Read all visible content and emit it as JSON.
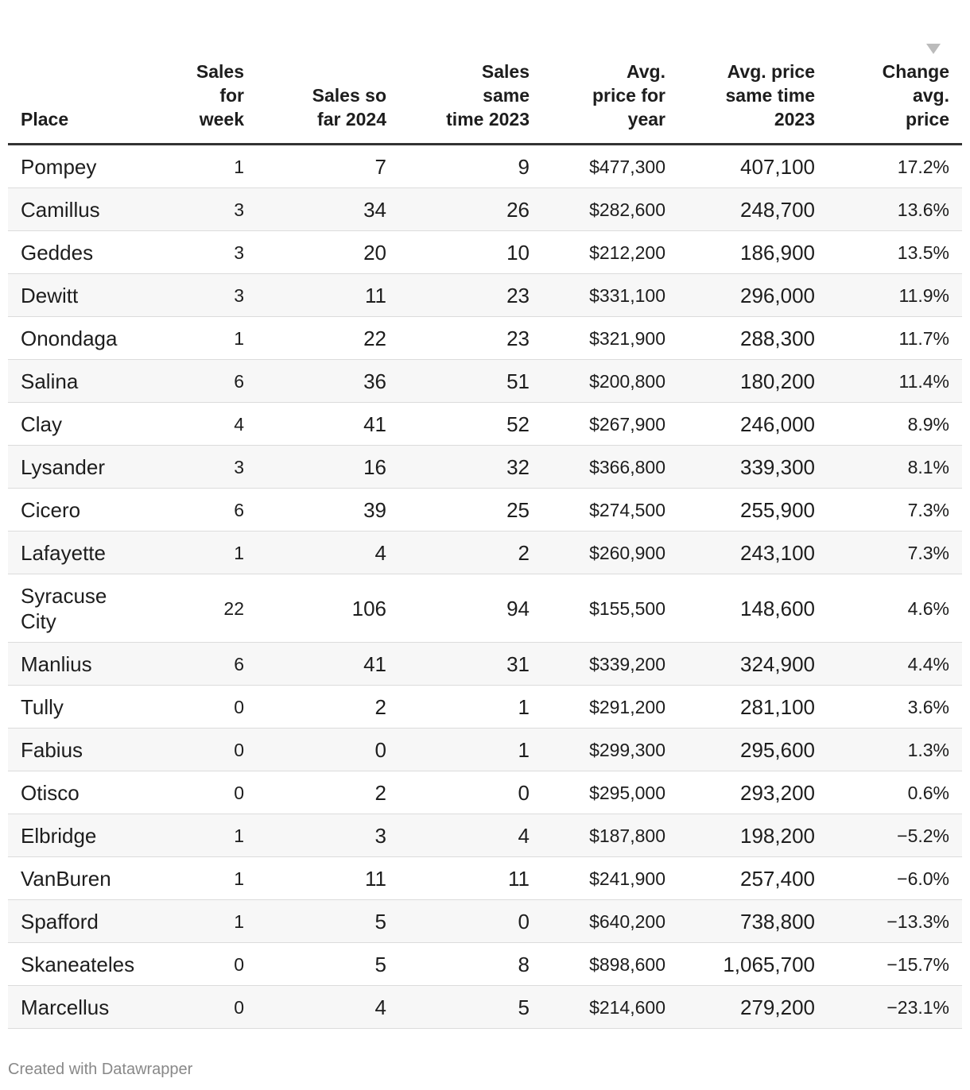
{
  "table": {
    "header": [
      "Place",
      "Sales\nfor\nweek",
      "Sales so\nfar 2024",
      "Sales\nsame\ntime 2023",
      "Avg.\nprice for\nyear",
      "Avg. price\nsame time\n2023",
      "Change\navg.\nprice"
    ],
    "rows": [
      [
        "Pompey",
        "1",
        "7",
        "9",
        "$477,300",
        "407,100",
        "17.2%"
      ],
      [
        "Camillus",
        "3",
        "34",
        "26",
        "$282,600",
        "248,700",
        "13.6%"
      ],
      [
        "Geddes",
        "3",
        "20",
        "10",
        "$212,200",
        "186,900",
        "13.5%"
      ],
      [
        "Dewitt",
        "3",
        "11",
        "23",
        "$331,100",
        "296,000",
        "11.9%"
      ],
      [
        "Onondaga",
        "1",
        "22",
        "23",
        "$321,900",
        "288,300",
        "11.7%"
      ],
      [
        "Salina",
        "6",
        "36",
        "51",
        "$200,800",
        "180,200",
        "11.4%"
      ],
      [
        "Clay",
        "4",
        "41",
        "52",
        "$267,900",
        "246,000",
        "8.9%"
      ],
      [
        "Lysander",
        "3",
        "16",
        "32",
        "$366,800",
        "339,300",
        "8.1%"
      ],
      [
        "Cicero",
        "6",
        "39",
        "25",
        "$274,500",
        "255,900",
        "7.3%"
      ],
      [
        "Lafayette",
        "1",
        "4",
        "2",
        "$260,900",
        "243,100",
        "7.3%"
      ],
      [
        "Syracuse City",
        "22",
        "106",
        "94",
        "$155,500",
        "148,600",
        "4.6%"
      ],
      [
        "Manlius",
        "6",
        "41",
        "31",
        "$339,200",
        "324,900",
        "4.4%"
      ],
      [
        "Tully",
        "0",
        "2",
        "1",
        "$291,200",
        "281,100",
        "3.6%"
      ],
      [
        "Fabius",
        "0",
        "0",
        "1",
        "$299,300",
        "295,600",
        "1.3%"
      ],
      [
        "Otisco",
        "0",
        "2",
        "0",
        "$295,000",
        "293,200",
        "0.6%"
      ],
      [
        "Elbridge",
        "1",
        "3",
        "4",
        "$187,800",
        "198,200",
        "−5.2%"
      ],
      [
        "VanBuren",
        "1",
        "11",
        "11",
        "$241,900",
        "257,400",
        "−6.0%"
      ],
      [
        "Spafford",
        "1",
        "5",
        "0",
        "$640,200",
        "738,800",
        "−13.3%"
      ],
      [
        "Skaneateles",
        "0",
        "5",
        "8",
        "$898,600",
        "1,065,700",
        "−15.7%"
      ],
      [
        "Marcellus",
        "0",
        "4",
        "5",
        "$214,600",
        "279,200",
        "−23.1%"
      ]
    ]
  },
  "footer": "Created with Datawrapper"
}
